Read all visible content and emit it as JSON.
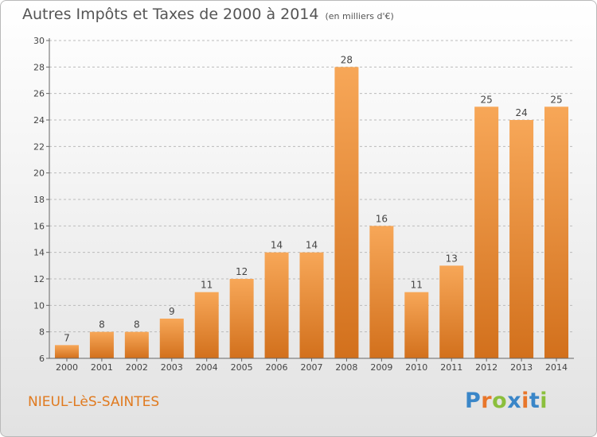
{
  "header": {
    "title": "Autres Impôts et Taxes de 2000 à 2014",
    "unit": "(en milliers d'€)"
  },
  "location": "NIEUL-LèS-SAINTES",
  "logo": {
    "text": "Proxiti",
    "letter_colors": [
      "#3a86c8",
      "#e8762a",
      "#8bbf3d",
      "#3a86c8",
      "#e8762a",
      "#3a86c8",
      "#8bbf3d"
    ]
  },
  "colors": {
    "bar_light": "#f7a758",
    "bar_dark": "#d2701c",
    "axis": "#666666",
    "grid": "#bbbbbb",
    "label": "#444444"
  },
  "chart_data": {
    "type": "bar",
    "title": "Autres Impôts et Taxes de 2000 à 2014",
    "subtitle": "(en milliers d'€)",
    "categories": [
      "2000",
      "2001",
      "2002",
      "2003",
      "2004",
      "2005",
      "2006",
      "2007",
      "2008",
      "2009",
      "2010",
      "2011",
      "2012",
      "2013",
      "2014"
    ],
    "values": [
      7,
      8,
      8,
      9,
      11,
      12,
      14,
      14,
      28,
      16,
      11,
      13,
      25,
      24,
      25
    ],
    "data_labels": [
      "7",
      "8",
      "8",
      "9",
      "11",
      "12",
      "14",
      "14",
      "28",
      "16",
      "11",
      "13",
      "25",
      "24",
      "25"
    ],
    "ylim": [
      6,
      30
    ],
    "yticks": [
      6,
      8,
      10,
      12,
      14,
      16,
      18,
      20,
      22,
      24,
      26,
      28,
      30
    ],
    "grid": "dashed horizontal",
    "legend": "none"
  }
}
